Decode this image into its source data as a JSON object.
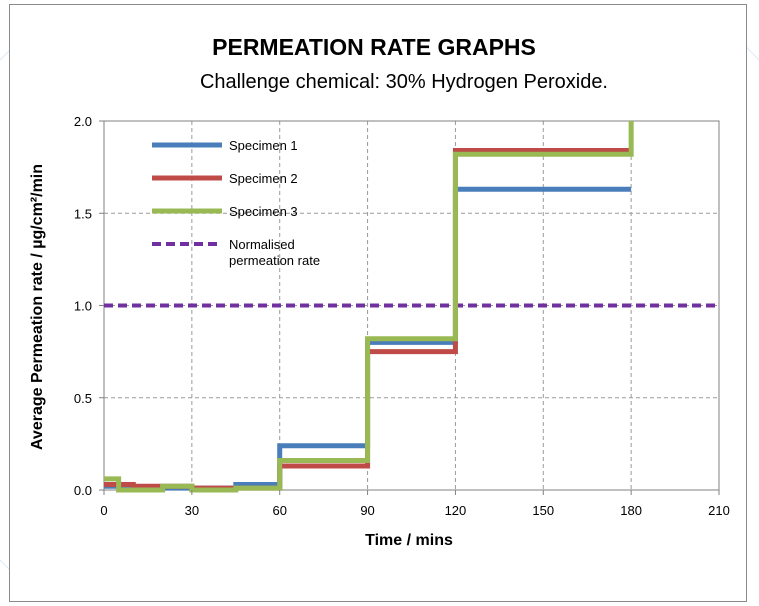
{
  "chart_data": {
    "type": "line",
    "step": true,
    "title": "PERMEATION RATE GRAPHS",
    "subtitle": "Challenge chemical: 30% Hydrogen Peroxide.",
    "xlabel": "Time / mins",
    "ylabel": "Average Permeation rate / µg/cm²/min",
    "xlim": [
      0,
      210
    ],
    "ylim": [
      0,
      2.0
    ],
    "x_ticks": [
      "0",
      "30",
      "60",
      "90",
      "120",
      "150",
      "180",
      "210"
    ],
    "y_ticks": [
      "0.0",
      "0.5",
      "1.0",
      "1.5",
      "2.0"
    ],
    "x_tick_values": [
      0,
      30,
      60,
      90,
      120,
      150,
      180,
      210
    ],
    "y_tick_values": [
      0,
      0.5,
      1.0,
      1.5,
      2.0
    ],
    "grid": true,
    "legend_position": "top-left",
    "series": [
      {
        "name": "Specimen 1",
        "color": "#4a7ebb",
        "style": "solid",
        "x": [
          0,
          5,
          10,
          20,
          30,
          45,
          60,
          90,
          120,
          180
        ],
        "y": [
          0.02,
          0.02,
          0.01,
          0.01,
          0.01,
          0.03,
          0.24,
          0.8,
          1.63,
          1.63
        ]
      },
      {
        "name": "Specimen 2",
        "color": "#be4b48",
        "style": "solid",
        "x": [
          0,
          5,
          10,
          20,
          30,
          45,
          60,
          90,
          120,
          180
        ],
        "y": [
          0.03,
          0.03,
          0.02,
          0.02,
          0.01,
          0.01,
          0.13,
          0.75,
          1.84,
          1.84
        ]
      },
      {
        "name": "Specimen 3",
        "color": "#98b954",
        "style": "solid",
        "x": [
          0,
          5,
          10,
          20,
          30,
          45,
          60,
          90,
          120,
          180
        ],
        "y": [
          0.06,
          0.0,
          0.0,
          0.02,
          0.0,
          0.01,
          0.16,
          0.82,
          1.82,
          2.0
        ]
      },
      {
        "name": "Normalised permeation rate",
        "legend_lines": [
          "Normalised",
          "permeation rate"
        ],
        "color": "#7030a0",
        "style": "dashed",
        "x": [
          0,
          210
        ],
        "y": [
          1.0,
          1.0
        ]
      }
    ]
  }
}
